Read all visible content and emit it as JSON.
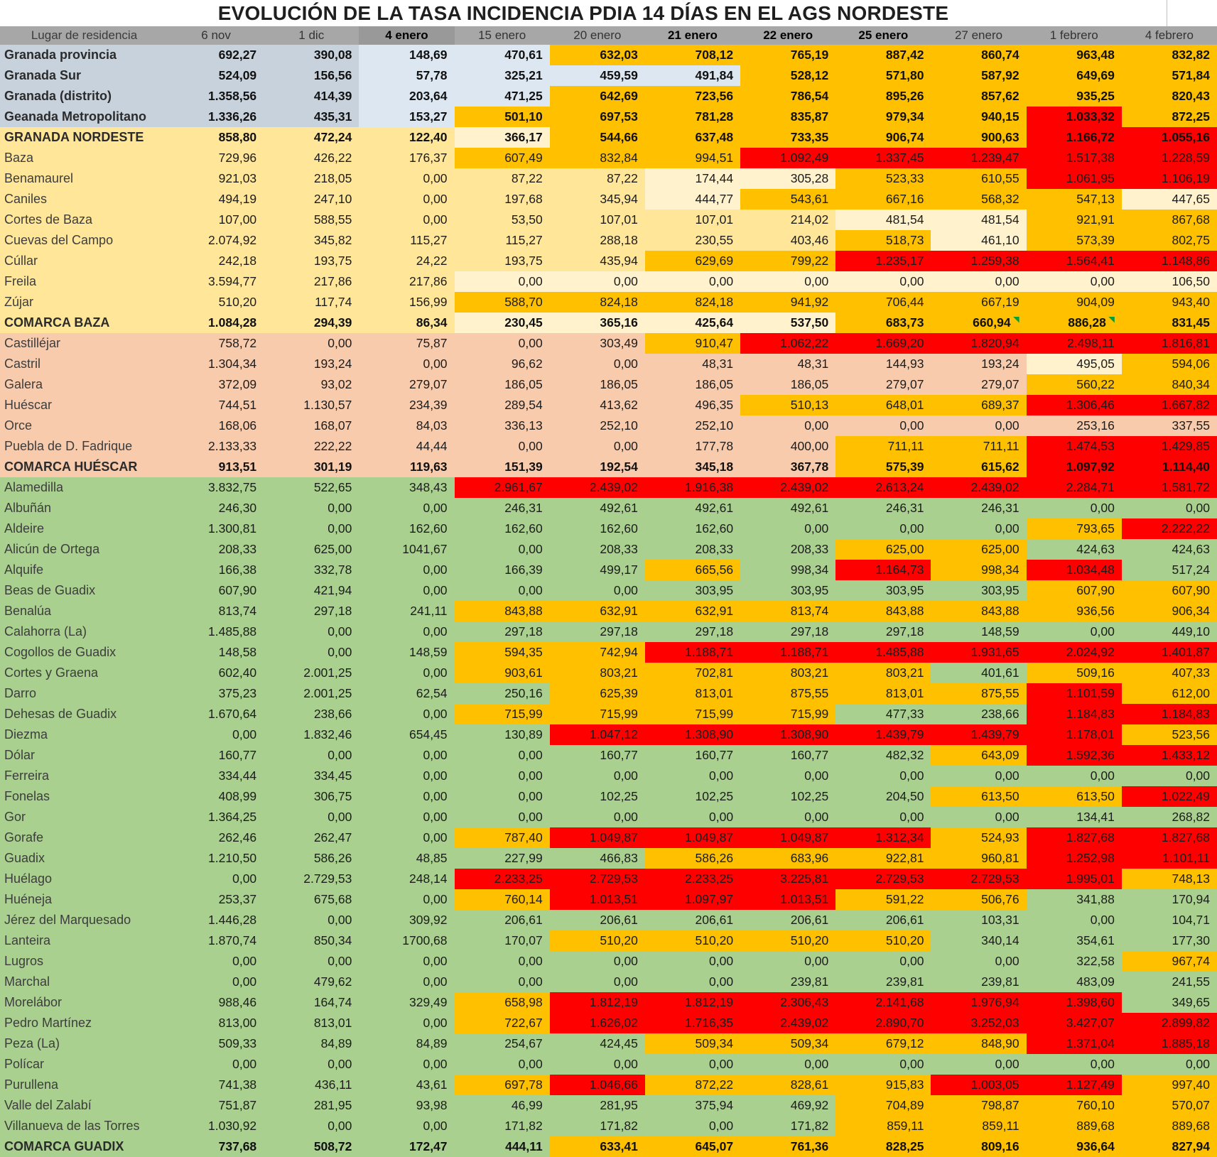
{
  "title": "EVOLUCIÓN DE LA TASA INCIDENCIA PDIA 14 DÍAS EN EL AGS NORDESTE",
  "colors": {
    "header": "#A7A7A7",
    "header_dark": "#999999",
    "granada": "#C8D2DD",
    "baza": "#FFE699",
    "huescar": "#F8CBAD",
    "guadix": "#A9D08E",
    "cream": "#FFF2CC",
    "orange": "#FFC000",
    "red": "#FF0000",
    "lightblue": "#DCE7F2",
    "marker": "#00A03C"
  },
  "header": {
    "name_label": "Lugar de residencia",
    "date_columns": [
      "6 nov",
      "1 dic",
      "4 enero",
      "15 enero",
      "20 enero",
      "21 enero",
      "22 enero",
      "25 enero",
      "27 enero",
      "1 febrero",
      "4 febrero"
    ],
    "bold_date_indices": [
      2,
      5,
      6,
      7
    ],
    "dark_bg_date_indices": [
      2
    ]
  },
  "legend_note": "cell color codes: b=group base, c=cream, o=orange, r=red, l=lightblue",
  "rows": [
    {
      "name": "Granada provincia",
      "group": "granada",
      "bold": true,
      "values": [
        "692,27",
        "390,08",
        "148,69",
        "470,61",
        "632,03",
        "708,12",
        "765,19",
        "887,42",
        "860,74",
        "963,48",
        "832,82"
      ],
      "colors": "bbllooooooo"
    },
    {
      "name": "Granada Sur",
      "group": "granada",
      "bold": true,
      "values": [
        "524,09",
        "156,56",
        "57,78",
        "325,21",
        "459,59",
        "491,84",
        "528,12",
        "571,80",
        "587,92",
        "649,69",
        "571,84"
      ],
      "colors": "bbllllooooo"
    },
    {
      "name": "Granada (distrito)",
      "group": "granada",
      "bold": true,
      "values": [
        "1.358,56",
        "414,39",
        "203,64",
        "471,25",
        "642,69",
        "723,56",
        "786,54",
        "895,26",
        "857,62",
        "935,25",
        "820,43"
      ],
      "colors": "bbllooooooo"
    },
    {
      "name": "Geanada Metropolitano",
      "group": "granada",
      "bold": true,
      "values": [
        "1.336,26",
        "435,31",
        "153,27",
        "501,10",
        "697,53",
        "781,28",
        "835,87",
        "979,34",
        "940,15",
        "1.033,32",
        "872,25"
      ],
      "colors": "bblooooooro"
    },
    {
      "name": "GRANADA NORDESTE",
      "group": "baza",
      "bold": true,
      "values": [
        "858,80",
        "472,24",
        "122,40",
        "366,17",
        "544,66",
        "637,48",
        "733,35",
        "906,74",
        "900,63",
        "1.166,72",
        "1.055,16"
      ],
      "colors": "bbbcooooorr"
    },
    {
      "name": "Baza",
      "group": "baza",
      "bold": false,
      "values": [
        "729,96",
        "426,22",
        "176,37",
        "607,49",
        "832,84",
        "994,51",
        "1.092,49",
        "1.337,45",
        "1.239,47",
        "1.517,38",
        "1.228,59"
      ],
      "colors": "bbbooorrrrr"
    },
    {
      "name": "Benamaurel",
      "group": "baza",
      "bold": false,
      "values": [
        "921,03",
        "218,05",
        "0,00",
        "87,22",
        "87,22",
        "174,44",
        "305,28",
        "523,33",
        "610,55",
        "1.061,95",
        "1.106,19"
      ],
      "colors": "bbbbbccoorr"
    },
    {
      "name": "Caniles",
      "group": "baza",
      "bold": false,
      "values": [
        "494,19",
        "247,10",
        "0,00",
        "197,68",
        "345,94",
        "444,77",
        "543,61",
        "667,16",
        "568,32",
        "547,13",
        "447,65"
      ],
      "colors": "bbbbbcooooc"
    },
    {
      "name": "Cortes de Baza",
      "group": "baza",
      "bold": false,
      "values": [
        "107,00",
        "588,55",
        "0,00",
        "53,50",
        "107,01",
        "107,01",
        "214,02",
        "481,54",
        "481,54",
        "921,91",
        "867,68"
      ],
      "colors": "bbbbbbbccoo"
    },
    {
      "name": "Cuevas del Campo",
      "group": "baza",
      "bold": false,
      "values": [
        "2.074,92",
        "345,82",
        "115,27",
        "115,27",
        "288,18",
        "230,55",
        "403,46",
        "518,73",
        "461,10",
        "573,39",
        "802,75"
      ],
      "colors": "bbbbbbbocoo"
    },
    {
      "name": "Cúllar",
      "group": "baza",
      "bold": false,
      "values": [
        "242,18",
        "193,75",
        "24,22",
        "193,75",
        "435,94",
        "629,69",
        "799,22",
        "1.235,17",
        "1.259,38",
        "1.564,41",
        "1.148,86"
      ],
      "colors": "bbbbboorrrr"
    },
    {
      "name": "Freila",
      "group": "baza",
      "bold": false,
      "values": [
        "3.594,77",
        "217,86",
        "217,86",
        "0,00",
        "0,00",
        "0,00",
        "0,00",
        "0,00",
        "0,00",
        "0,00",
        "106,50"
      ],
      "colors": "bbbcccccccc"
    },
    {
      "name": "Zújar",
      "group": "baza",
      "bold": false,
      "values": [
        "510,20",
        "117,74",
        "156,99",
        "588,70",
        "824,18",
        "824,18",
        "941,92",
        "706,44",
        "667,19",
        "904,09",
        "943,40"
      ],
      "colors": "bbboooooooo"
    },
    {
      "name": "COMARCA BAZA",
      "group": "baza",
      "bold": true,
      "values": [
        "1.084,28",
        "294,39",
        "86,34",
        "230,45",
        "365,16",
        "425,64",
        "537,50",
        "683,73",
        "660,94",
        "886,28",
        "831,45"
      ],
      "colors": "bbbccccoooo",
      "comment_markers": [
        8,
        9
      ]
    },
    {
      "name": "Castilléjar",
      "group": "huescar",
      "bold": false,
      "values": [
        "758,72",
        "0,00",
        "75,87",
        "0,00",
        "303,49",
        "910,47",
        "1.062,22",
        "1.669,20",
        "1.820,94",
        "2.498,11",
        "1.816,81"
      ],
      "colors": "bbbbborrrrr"
    },
    {
      "name": "Castril",
      "group": "huescar",
      "bold": false,
      "values": [
        "1.304,34",
        "193,24",
        "0,00",
        "96,62",
        "0,00",
        "48,31",
        "48,31",
        "144,93",
        "193,24",
        "495,05",
        "594,06"
      ],
      "colors": "bbbbbbbbbco"
    },
    {
      "name": "Galera",
      "group": "huescar",
      "bold": false,
      "values": [
        "372,09",
        "93,02",
        "279,07",
        "186,05",
        "186,05",
        "186,05",
        "186,05",
        "279,07",
        "279,07",
        "560,22",
        "840,34"
      ],
      "colors": "bbbbbbbbboo"
    },
    {
      "name": "Huéscar",
      "group": "huescar",
      "bold": false,
      "values": [
        "744,51",
        "1.130,57",
        "234,39",
        "289,54",
        "413,62",
        "496,35",
        "510,13",
        "648,01",
        "689,37",
        "1.306,46",
        "1.667,82"
      ],
      "colors": "bbbbbbooorr"
    },
    {
      "name": "Orce",
      "group": "huescar",
      "bold": false,
      "values": [
        "168,06",
        "168,07",
        "84,03",
        "336,13",
        "252,10",
        "252,10",
        "0,00",
        "0,00",
        "0,00",
        "253,16",
        "337,55"
      ],
      "colors": "bbbbbbbbbbb"
    },
    {
      "name": "Puebla de D. Fadrique",
      "group": "huescar",
      "bold": false,
      "values": [
        "2.133,33",
        "222,22",
        "44,44",
        "0,00",
        "0,00",
        "177,78",
        "400,00",
        "711,11",
        "711,11",
        "1.474,53",
        "1.429,85"
      ],
      "colors": "bbbbbbboorr"
    },
    {
      "name": "COMARCA HUÉSCAR",
      "group": "huescar",
      "bold": true,
      "values": [
        "913,51",
        "301,19",
        "119,63",
        "151,39",
        "192,54",
        "345,18",
        "367,78",
        "575,39",
        "615,62",
        "1.097,92",
        "1.114,40"
      ],
      "colors": "bbbbbbboorr"
    },
    {
      "name": "Alamedilla",
      "group": "guadix",
      "bold": false,
      "values": [
        "3.832,75",
        "522,65",
        "348,43",
        "2.961,67",
        "2.439,02",
        "1.916,38",
        "2.439,02",
        "2.613,24",
        "2.439,02",
        "2.284,71",
        "1.581,72"
      ],
      "colors": "bbbrrrrrrrr"
    },
    {
      "name": "Albuñán",
      "group": "guadix",
      "bold": false,
      "values": [
        "246,30",
        "0,00",
        "0,00",
        "246,31",
        "492,61",
        "492,61",
        "492,61",
        "246,31",
        "246,31",
        "0,00",
        "0,00"
      ],
      "colors": "bbbbbbbbbbb"
    },
    {
      "name": "Aldeire",
      "group": "guadix",
      "bold": false,
      "values": [
        "1.300,81",
        "0,00",
        "162,60",
        "162,60",
        "162,60",
        "162,60",
        "0,00",
        "0,00",
        "0,00",
        "793,65",
        "2.222,22"
      ],
      "colors": "bbbbbbbbbor"
    },
    {
      "name": "Alicún de Ortega",
      "group": "guadix",
      "bold": false,
      "values": [
        "208,33",
        "625,00",
        "1041,67",
        "0,00",
        "208,33",
        "208,33",
        "208,33",
        "625,00",
        "625,00",
        "424,63",
        "424,63"
      ],
      "colors": "bbbbbbboobb"
    },
    {
      "name": "Alquife",
      "group": "guadix",
      "bold": false,
      "values": [
        "166,38",
        "332,78",
        "0,00",
        "166,39",
        "499,17",
        "665,56",
        "998,34",
        "1.164,73",
        "998,34",
        "1.034,48",
        "517,24"
      ],
      "colors": "bbbbbobrorb"
    },
    {
      "name": "Beas de Guadix",
      "group": "guadix",
      "bold": false,
      "values": [
        "607,90",
        "421,94",
        "0,00",
        "0,00",
        "0,00",
        "303,95",
        "303,95",
        "303,95",
        "303,95",
        "607,90",
        "607,90"
      ],
      "colors": "bbbbbbbbboo"
    },
    {
      "name": "Benalúa",
      "group": "guadix",
      "bold": false,
      "values": [
        "813,74",
        "297,18",
        "241,11",
        "843,88",
        "632,91",
        "632,91",
        "813,74",
        "843,88",
        "843,88",
        "936,56",
        "906,34"
      ],
      "colors": "bbboooooooo"
    },
    {
      "name": "Calahorra (La)",
      "group": "guadix",
      "bold": false,
      "values": [
        "1.485,88",
        "0,00",
        "0,00",
        "297,18",
        "297,18",
        "297,18",
        "297,18",
        "297,18",
        "148,59",
        "0,00",
        "449,10"
      ],
      "colors": "bbbbbbbbbbb"
    },
    {
      "name": "Cogollos de Guadix",
      "group": "guadix",
      "bold": false,
      "values": [
        "148,58",
        "0,00",
        "148,59",
        "594,35",
        "742,94",
        "1.188,71",
        "1.188,71",
        "1.485,88",
        "1.931,65",
        "2.024,92",
        "1.401,87"
      ],
      "colors": "bbboorrrrrr"
    },
    {
      "name": "Cortes y Graena",
      "group": "guadix",
      "bold": false,
      "values": [
        "602,40",
        "2.001,25",
        "0,00",
        "903,61",
        "803,21",
        "702,81",
        "803,21",
        "803,21",
        "401,61",
        "509,16",
        "407,33"
      ],
      "colors": "bbboooooboo"
    },
    {
      "name": "Darro",
      "group": "guadix",
      "bold": false,
      "values": [
        "375,23",
        "2.001,25",
        "62,54",
        "250,16",
        "625,39",
        "813,01",
        "875,55",
        "813,01",
        "875,55",
        "1.101,59",
        "612,00"
      ],
      "colors": "bbbboooooro"
    },
    {
      "name": "Dehesas de Guadix",
      "group": "guadix",
      "bold": false,
      "values": [
        "1.670,64",
        "238,66",
        "0,00",
        "715,99",
        "715,99",
        "715,99",
        "715,99",
        "477,33",
        "238,66",
        "1.184,83",
        "1.184,83"
      ],
      "colors": "bbboooobbrr"
    },
    {
      "name": "Diezma",
      "group": "guadix",
      "bold": false,
      "values": [
        "0,00",
        "1.832,46",
        "654,45",
        "130,89",
        "1.047,12",
        "1.308,90",
        "1.308,90",
        "1.439,79",
        "1.439,79",
        "1.178,01",
        "523,56"
      ],
      "colors": "bbbbrrrrrro"
    },
    {
      "name": "Dólar",
      "group": "guadix",
      "bold": false,
      "values": [
        "160,77",
        "0,00",
        "0,00",
        "0,00",
        "160,77",
        "160,77",
        "160,77",
        "482,32",
        "643,09",
        "1.592,36",
        "1.433,12"
      ],
      "colors": "bbbbbbbborr"
    },
    {
      "name": "Ferreira",
      "group": "guadix",
      "bold": false,
      "values": [
        "334,44",
        "334,45",
        "0,00",
        "0,00",
        "0,00",
        "0,00",
        "0,00",
        "0,00",
        "0,00",
        "0,00",
        "0,00"
      ],
      "colors": "bbbbbbbbbbb"
    },
    {
      "name": "Fonelas",
      "group": "guadix",
      "bold": false,
      "values": [
        "408,99",
        "306,75",
        "0,00",
        "0,00",
        "102,25",
        "102,25",
        "102,25",
        "204,50",
        "613,50",
        "613,50",
        "1.022,49"
      ],
      "colors": "bbbbbbbboor"
    },
    {
      "name": "Gor",
      "group": "guadix",
      "bold": false,
      "values": [
        "1.364,25",
        "0,00",
        "0,00",
        "0,00",
        "0,00",
        "0,00",
        "0,00",
        "0,00",
        "0,00",
        "134,41",
        "268,82"
      ],
      "colors": "bbbbbbbbbbb"
    },
    {
      "name": "Gorafe",
      "group": "guadix",
      "bold": false,
      "values": [
        "262,46",
        "262,47",
        "0,00",
        "787,40",
        "1.049,87",
        "1.049,87",
        "1.049,87",
        "1.312,34",
        "524,93",
        "1.827,68",
        "1.827,68"
      ],
      "colors": "bbborrrrorr"
    },
    {
      "name": "Guadix",
      "group": "guadix",
      "bold": false,
      "values": [
        "1.210,50",
        "586,26",
        "48,85",
        "227,99",
        "466,83",
        "586,26",
        "683,96",
        "922,81",
        "960,81",
        "1.252,98",
        "1.101,11"
      ],
      "colors": "bbbbboooorr"
    },
    {
      "name": "Huélago",
      "group": "guadix",
      "bold": false,
      "values": [
        "0,00",
        "2.729,53",
        "248,14",
        "2.233,25",
        "2.729,53",
        "2.233,25",
        "3.225,81",
        "2.729,53",
        "2.729,53",
        "1.995,01",
        "748,13"
      ],
      "colors": "bbbrrrrrrro"
    },
    {
      "name": "Huéneja",
      "group": "guadix",
      "bold": false,
      "values": [
        "253,37",
        "675,68",
        "0,00",
        "760,14",
        "1.013,51",
        "1.097,97",
        "1.013,51",
        "591,22",
        "506,76",
        "341,88",
        "170,94"
      ],
      "colors": "bbborrroobb"
    },
    {
      "name": "Jérez del Marquesado",
      "group": "guadix",
      "bold": false,
      "values": [
        "1.446,28",
        "0,00",
        "309,92",
        "206,61",
        "206,61",
        "206,61",
        "206,61",
        "206,61",
        "103,31",
        "0,00",
        "104,71"
      ],
      "colors": "bbbbbbbbbbb"
    },
    {
      "name": "Lanteira",
      "group": "guadix",
      "bold": false,
      "values": [
        "1.870,74",
        "850,34",
        "1700,68",
        "170,07",
        "510,20",
        "510,20",
        "510,20",
        "510,20",
        "340,14",
        "354,61",
        "177,30"
      ],
      "colors": "bbbboooobbb"
    },
    {
      "name": "Lugros",
      "group": "guadix",
      "bold": false,
      "values": [
        "0,00",
        "0,00",
        "0,00",
        "0,00",
        "0,00",
        "0,00",
        "0,00",
        "0,00",
        "0,00",
        "322,58",
        "967,74"
      ],
      "colors": "bbbbbbbbbbo"
    },
    {
      "name": "Marchal",
      "group": "guadix",
      "bold": false,
      "values": [
        "0,00",
        "479,62",
        "0,00",
        "0,00",
        "0,00",
        "0,00",
        "239,81",
        "239,81",
        "239,81",
        "483,09",
        "241,55"
      ],
      "colors": "bbbbbbbbbbb"
    },
    {
      "name": "Morelábor",
      "group": "guadix",
      "bold": false,
      "values": [
        "988,46",
        "164,74",
        "329,49",
        "658,98",
        "1.812,19",
        "1.812,19",
        "2.306,43",
        "2.141,68",
        "1.976,94",
        "1.398,60",
        "349,65"
      ],
      "colors": "bbborrrrrrb"
    },
    {
      "name": "Pedro Martínez",
      "group": "guadix",
      "bold": false,
      "values": [
        "813,00",
        "813,01",
        "0,00",
        "722,67",
        "1.626,02",
        "1.716,35",
        "2.439,02",
        "2.890,70",
        "3.252,03",
        "3.427,07",
        "2.899,82"
      ],
      "colors": "bbborrrrrrr"
    },
    {
      "name": "Peza (La)",
      "group": "guadix",
      "bold": false,
      "values": [
        "509,33",
        "84,89",
        "84,89",
        "254,67",
        "424,45",
        "509,34",
        "509,34",
        "679,12",
        "848,90",
        "1.371,04",
        "1.885,18"
      ],
      "colors": "bbbbboooorr"
    },
    {
      "name": "Polícar",
      "group": "guadix",
      "bold": false,
      "values": [
        "0,00",
        "0,00",
        "0,00",
        "0,00",
        "0,00",
        "0,00",
        "0,00",
        "0,00",
        "0,00",
        "0,00",
        "0,00"
      ],
      "colors": "bbbbbbbbbbb"
    },
    {
      "name": "Purullena",
      "group": "guadix",
      "bold": false,
      "values": [
        "741,38",
        "436,11",
        "43,61",
        "697,78",
        "1.046,66",
        "872,22",
        "828,61",
        "915,83",
        "1.003,05",
        "1.127,49",
        "997,40"
      ],
      "colors": "bbborooorro"
    },
    {
      "name": "Valle del Zalabí",
      "group": "guadix",
      "bold": false,
      "values": [
        "751,87",
        "281,95",
        "93,98",
        "46,99",
        "281,95",
        "375,94",
        "469,92",
        "704,89",
        "798,87",
        "760,10",
        "570,07"
      ],
      "colors": "bbbbbbboooo"
    },
    {
      "name": "Villanueva de las Torres",
      "group": "guadix",
      "bold": false,
      "values": [
        "1.030,92",
        "0,00",
        "0,00",
        "171,82",
        "171,82",
        "0,00",
        "171,82",
        "859,11",
        "859,11",
        "889,68",
        "889,68"
      ],
      "colors": "bbbbbbboooo"
    },
    {
      "name": "COMARCA GUADIX",
      "group": "guadix",
      "bold": true,
      "values": [
        "737,68",
        "508,72",
        "172,47",
        "444,11",
        "633,41",
        "645,07",
        "761,36",
        "828,25",
        "809,16",
        "936,64",
        "827,94"
      ],
      "colors": "bbbbooooooo"
    }
  ]
}
